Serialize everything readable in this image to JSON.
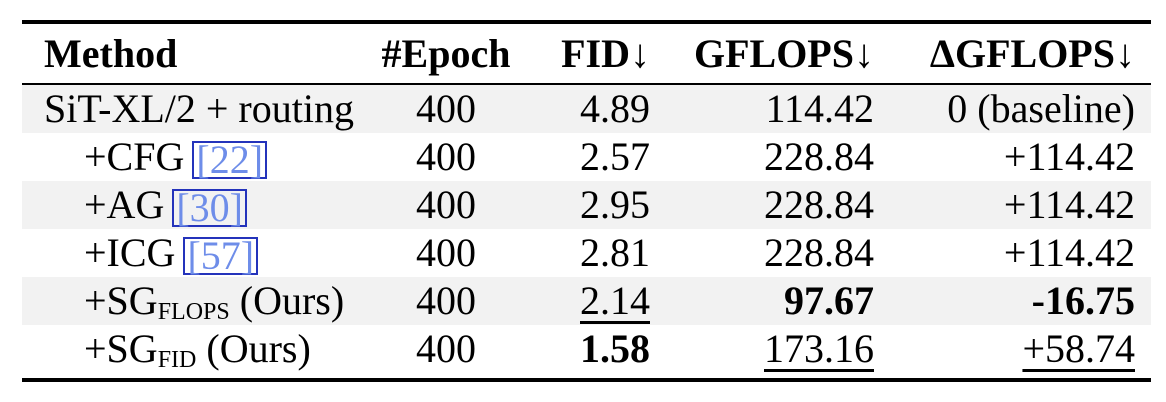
{
  "colors": {
    "background": "#ffffff",
    "text": "#000000",
    "rule": "#000000",
    "stripe": "#f2f2f2",
    "cite_text": "#6e8de9",
    "cite_border": "#2433bb"
  },
  "table": {
    "header": {
      "method": "Method",
      "epoch": "#Epoch",
      "fid": {
        "label": "FID",
        "arrow": "↓"
      },
      "gflops": {
        "label": "GFLOPS",
        "arrow": "↓"
      },
      "dgflops": {
        "label": "ΔGFLOPS",
        "arrow": "↓"
      }
    },
    "rows": [
      {
        "method": {
          "pre": "SiT-XL/2 + routing",
          "cite": "",
          "sub": "",
          "post": ""
        },
        "epoch": "400",
        "fid": "4.89",
        "gflops": "114.42",
        "dgflops": "0 (baseline)"
      },
      {
        "method": {
          "pre": "+CFG",
          "cite": "[22]",
          "sub": "",
          "post": ""
        },
        "epoch": "400",
        "fid": "2.57",
        "gflops": "228.84",
        "dgflops": "+114.42"
      },
      {
        "method": {
          "pre": "+AG",
          "cite": "[30]",
          "sub": "",
          "post": ""
        },
        "epoch": "400",
        "fid": "2.95",
        "gflops": "228.84",
        "dgflops": "+114.42"
      },
      {
        "method": {
          "pre": "+ICG",
          "cite": "[57]",
          "sub": "",
          "post": ""
        },
        "epoch": "400",
        "fid": "2.81",
        "gflops": "228.84",
        "dgflops": "+114.42"
      },
      {
        "method": {
          "pre": "+SG",
          "cite": "",
          "sub": "FLOPS",
          "post": " (Ours)"
        },
        "epoch": "400",
        "fid": "2.14",
        "gflops": "97.67",
        "dgflops": "-16.75"
      },
      {
        "method": {
          "pre": "+SG",
          "cite": "",
          "sub": "FID",
          "post": " (Ours)"
        },
        "epoch": "400",
        "fid": "1.58",
        "gflops": "173.16",
        "dgflops": "+58.74"
      }
    ]
  }
}
